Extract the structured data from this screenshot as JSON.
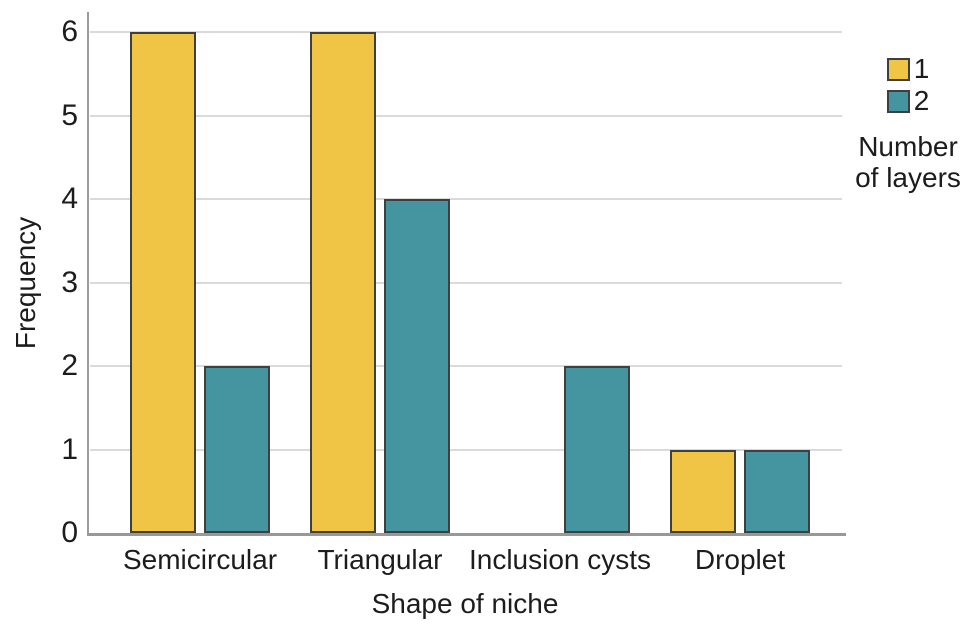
{
  "chart_data": {
    "type": "bar",
    "title": "",
    "xlabel": "Shape of niche",
    "ylabel": "Frequency",
    "categories": [
      "Semicircular",
      "Triangular",
      "Inclusion cysts",
      "Droplet"
    ],
    "series": [
      {
        "name": "1",
        "color": "#F0C545",
        "values": [
          6,
          6,
          0,
          1
        ]
      },
      {
        "name": "2",
        "color": "#4495A0",
        "values": [
          2,
          4,
          2,
          1
        ]
      }
    ],
    "legend_title": "Number of layers",
    "legend_position": "right",
    "ylim": [
      0,
      6
    ],
    "yticks": [
      0,
      1,
      2,
      3,
      4,
      5,
      6
    ],
    "grid": "horizontal",
    "colors": {
      "bar_border": "#3f3f3f",
      "gridline": "#dadada",
      "axis": "#9c9c9c",
      "text": "#1c1c1c",
      "background": "#ffffff"
    }
  }
}
